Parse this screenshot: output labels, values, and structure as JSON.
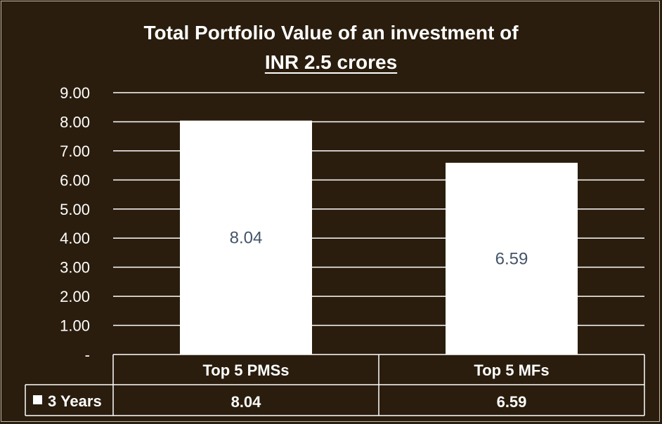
{
  "chart_data": {
    "type": "bar",
    "title_line1": "Total Portfolio Value of an investment of",
    "title_line2": "INR 2.5 crores",
    "categories": [
      "Top 5 PMSs",
      "Top 5 MFs"
    ],
    "series": [
      {
        "name": "3 Years",
        "values": [
          8.04,
          6.59
        ],
        "value_labels": [
          "8.04",
          "6.59"
        ]
      }
    ],
    "ylim": [
      0,
      9
    ],
    "y_ticks": [
      "-",
      "1.00",
      "2.00",
      "3.00",
      "4.00",
      "5.00",
      "6.00",
      "7.00",
      "8.00",
      "9.00"
    ],
    "grid": true,
    "data_table": true,
    "colors": {
      "background": "#2a1d0d",
      "bar": "#ffffff",
      "grid": "#ffffff",
      "data_label": "#44546a"
    }
  }
}
